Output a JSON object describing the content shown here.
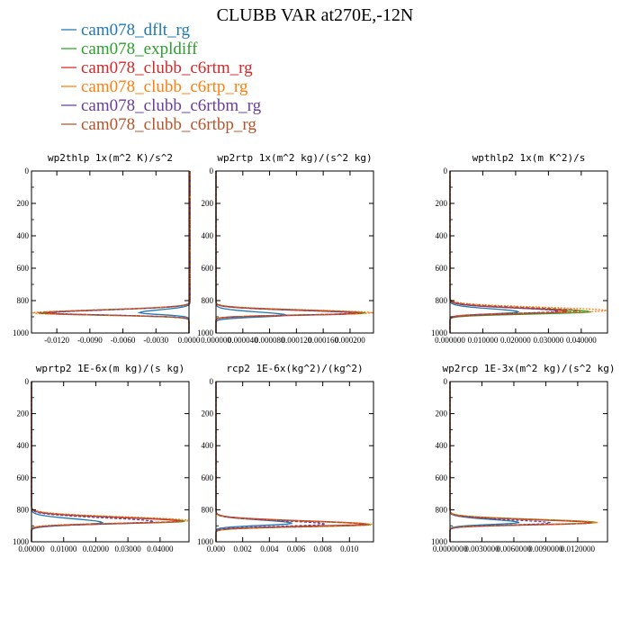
{
  "title": "CLUBB VAR at270E,-12N",
  "legend": [
    {
      "name": "cam078_dflt_rg",
      "color": "#1f77b4"
    },
    {
      "name": "cam078_expldiff",
      "color": "#2ca02c"
    },
    {
      "name": "cam078_clubb_c6rtm_rg",
      "color": "#d62728"
    },
    {
      "name": "cam078_clubb_c6rtp_rg",
      "color": "#ff7f0e"
    },
    {
      "name": "cam078_clubb_c6rtbm_rg",
      "color": "#6a3d9a"
    },
    {
      "name": "cam078_clubb_c6rtbp_rg",
      "color": "#b5542a"
    }
  ],
  "chart_data": [
    {
      "type": "line",
      "title": "wp2thlp   1x(m^2 K)/s^2",
      "xlim": [
        -0.0143,
        0.0
      ],
      "ylim": [
        1000,
        0
      ],
      "xticks": [
        -0.012,
        -0.009,
        -0.006,
        -0.003,
        0.0
      ],
      "xtick_labels": [
        "-0.0120",
        "-0.0090",
        "-0.0060",
        "-0.0030",
        "0.0000"
      ],
      "yticks": [
        0,
        200,
        400,
        600,
        800,
        1000
      ],
      "ytick_labels": [
        "0",
        "200",
        "400",
        "600",
        "800",
        "1000"
      ],
      "peak_level": [
        875,
        878,
        877,
        877,
        877,
        877
      ],
      "peak_value": [
        -0.0045,
        -0.0135,
        -0.013,
        -0.0143,
        -0.0125,
        -0.0138
      ],
      "width": [
        28,
        30,
        30,
        30,
        30,
        30
      ],
      "low_offset": [
        0.0,
        0.0,
        0.0,
        0.0,
        0.0,
        0.0
      ],
      "top_value": [
        0.0001,
        0.0001,
        0.0001,
        0.0001,
        0.0001,
        0.0001
      ]
    },
    {
      "type": "line",
      "title": "wp2rtp   1x(m^2 kg)/(s^2 kg)",
      "xlim": [
        0.0,
        0.000235
      ],
      "ylim": [
        1000,
        0
      ],
      "xticks": [
        0.0,
        4e-05,
        8e-05,
        0.00012,
        0.00016,
        0.0002
      ],
      "xtick_labels": [
        "0.000000",
        "0.000040",
        "0.000080",
        "0.000120",
        "0.000160",
        "0.000200"
      ],
      "yticks": [
        0,
        200,
        400,
        600,
        800,
        1000
      ],
      "ytick_labels": [
        "0",
        "200",
        "400",
        "600",
        "800",
        "1000"
      ],
      "peak_level": [
        890,
        877,
        879,
        876,
        878,
        877
      ],
      "peak_value": [
        0.000105,
        0.000225,
        0.000215,
        0.000235,
        0.000205,
        0.00022
      ],
      "width": [
        30,
        28,
        28,
        28,
        28,
        28
      ],
      "low_offset": [
        0.0,
        0.0,
        0.0,
        0.0,
        0.0,
        0.0
      ],
      "top_value": [
        0.0,
        0.0,
        0.0,
        0.0,
        0.0,
        0.0
      ]
    },
    {
      "type": "line",
      "title": "wpthlp2   1x(m K^2)/s",
      "xlim": [
        0.0,
        0.048
      ],
      "ylim": [
        1000,
        0
      ],
      "xticks": [
        0.0,
        0.01,
        0.02,
        0.03,
        0.04
      ],
      "xtick_labels": [
        "0.000000",
        "0.010000",
        "0.020000",
        "0.030000",
        "0.040000"
      ],
      "yticks": [
        0,
        200,
        400,
        600,
        800,
        1000
      ],
      "ytick_labels": [
        "0",
        "200",
        "400",
        "600",
        "800",
        "1000"
      ],
      "peak_level": [
        870,
        870,
        868,
        862,
        866,
        864
      ],
      "peak_value": [
        0.021,
        0.043,
        0.036,
        0.048,
        0.033,
        0.04
      ],
      "width": [
        30,
        32,
        32,
        32,
        32,
        32
      ],
      "low_offset": [
        0.0,
        0.0,
        0.0,
        0.0,
        0.0,
        0.0
      ],
      "top_value": [
        0.0,
        0.0,
        0.0,
        0.0,
        0.0,
        0.0
      ]
    },
    {
      "type": "line",
      "title": "wprtp2   1E-6x(m kg)/(s kg)",
      "xlim": [
        0.0,
        0.049
      ],
      "ylim": [
        1000,
        0
      ],
      "xticks": [
        0.0,
        0.01,
        0.02,
        0.03,
        0.04
      ],
      "xtick_labels": [
        "0.00000",
        "0.01000",
        "0.02000",
        "0.03000",
        "0.04000"
      ],
      "yticks": [
        0,
        200,
        400,
        600,
        800,
        1000
      ],
      "ytick_labels": [
        "0",
        "200",
        "400",
        "600",
        "800",
        "1000"
      ],
      "peak_level": [
        880,
        872,
        872,
        868,
        874,
        870
      ],
      "peak_value": [
        0.022,
        0.048,
        0.046,
        0.049,
        0.038,
        0.047
      ],
      "width": [
        36,
        36,
        36,
        36,
        36,
        36
      ],
      "low_offset": [
        0.0,
        0.0,
        0.0,
        0.0,
        0.0,
        0.0
      ],
      "top_value": [
        0.0,
        0.0,
        0.0,
        0.0,
        0.0,
        0.0
      ]
    },
    {
      "type": "line",
      "title": "rcp2   1E-6x(kg^2)/(kg^2)",
      "xlim": [
        0.0,
        0.0118
      ],
      "ylim": [
        1000,
        0
      ],
      "xticks": [
        0.0,
        0.002,
        0.004,
        0.006,
        0.008,
        0.01
      ],
      "xtick_labels": [
        "0.000",
        "0.002",
        "0.004",
        "0.006",
        "0.008",
        "0.010"
      ],
      "yticks": [
        0,
        200,
        400,
        600,
        800,
        1000
      ],
      "ytick_labels": [
        "0",
        "200",
        "400",
        "600",
        "800",
        "1000"
      ],
      "peak_level": [
        885,
        893,
        890,
        893,
        890,
        893
      ],
      "peak_value": [
        0.0057,
        0.0116,
        0.0112,
        0.0118,
        0.0082,
        0.0115
      ],
      "width": [
        32,
        32,
        32,
        32,
        32,
        32
      ],
      "low_offset": [
        0.0,
        0.0,
        0.0,
        0.0,
        0.0,
        0.0
      ],
      "top_value": [
        0.0,
        0.0,
        0.0,
        0.0,
        0.0,
        0.0
      ]
    },
    {
      "type": "line",
      "title": "wp2rcp   1E-3x(m^2 kg)/(s^2 kg)",
      "xlim": [
        0.0,
        0.0148
      ],
      "ylim": [
        1000,
        0
      ],
      "xticks": [
        0.0,
        0.003,
        0.006,
        0.009,
        0.012
      ],
      "xtick_labels": [
        "0.0000000",
        "0.0030000",
        "0.0060000",
        "0.0090000",
        "0.0120000"
      ],
      "yticks": [
        0,
        200,
        400,
        600,
        800,
        1000
      ],
      "ytick_labels": [
        "0",
        "200",
        "400",
        "600",
        "800",
        "1000"
      ],
      "peak_level": [
        880,
        880,
        882,
        880,
        883,
        882
      ],
      "peak_value": [
        0.0065,
        0.0138,
        0.0133,
        0.0139,
        0.0095,
        0.0135
      ],
      "width": [
        30,
        30,
        30,
        30,
        30,
        30
      ],
      "low_offset": [
        0.0,
        0.0,
        0.0,
        0.0,
        0.0,
        0.0
      ],
      "top_value": [
        0.0,
        0.0,
        0.0,
        0.0,
        0.0,
        0.0
      ]
    }
  ]
}
